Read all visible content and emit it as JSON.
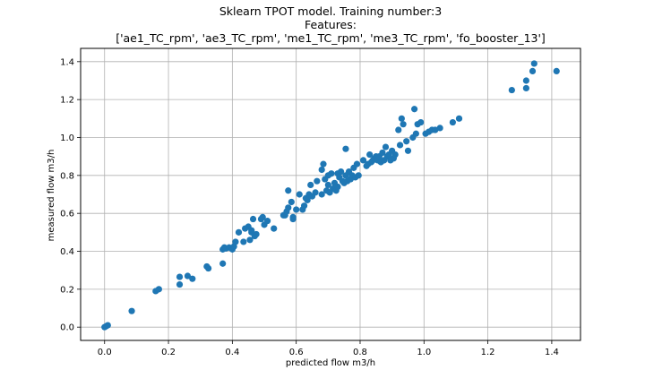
{
  "chart_data": {
    "type": "scatter",
    "title": "Sklearn TPOT model. Training number:3",
    "subtitle_lines": [
      "Features:",
      "['ae1_TC_rpm', 'ae3_TC_rpm', 'me1_TC_rpm', 'me3_TC_rpm', 'fo_booster_13']"
    ],
    "xlabel": "predicted flow m3/h",
    "ylabel": "measured flow m3/h",
    "xlim": [
      -0.075,
      1.49
    ],
    "ylim": [
      -0.07,
      1.47
    ],
    "xticks": [
      0.0,
      0.2,
      0.4,
      0.6,
      0.8,
      1.0,
      1.2,
      1.4
    ],
    "xtick_labels": [
      "0.0",
      "0.2",
      "0.4",
      "0.6",
      "0.8",
      "1.0",
      "1.2",
      "1.4"
    ],
    "yticks": [
      0.0,
      0.2,
      0.4,
      0.6,
      0.8,
      1.0,
      1.2,
      1.4
    ],
    "ytick_labels": [
      "0.0",
      "0.2",
      "0.4",
      "0.6",
      "0.8",
      "1.0",
      "1.2",
      "1.4"
    ],
    "grid": true,
    "marker_color": "#1f77b4",
    "points": [
      [
        0.0,
        0.0
      ],
      [
        0.005,
        0.005
      ],
      [
        0.01,
        0.01
      ],
      [
        0.085,
        0.085
      ],
      [
        0.16,
        0.19
      ],
      [
        0.17,
        0.2
      ],
      [
        0.235,
        0.225
      ],
      [
        0.235,
        0.265
      ],
      [
        0.26,
        0.27
      ],
      [
        0.275,
        0.255
      ],
      [
        0.32,
        0.32
      ],
      [
        0.325,
        0.31
      ],
      [
        0.37,
        0.335
      ],
      [
        0.37,
        0.41
      ],
      [
        0.375,
        0.42
      ],
      [
        0.38,
        0.415
      ],
      [
        0.39,
        0.42
      ],
      [
        0.4,
        0.41
      ],
      [
        0.405,
        0.425
      ],
      [
        0.41,
        0.45
      ],
      [
        0.42,
        0.5
      ],
      [
        0.435,
        0.45
      ],
      [
        0.44,
        0.52
      ],
      [
        0.45,
        0.53
      ],
      [
        0.455,
        0.46
      ],
      [
        0.46,
        0.5
      ],
      [
        0.46,
        0.51
      ],
      [
        0.465,
        0.57
      ],
      [
        0.47,
        0.48
      ],
      [
        0.475,
        0.49
      ],
      [
        0.49,
        0.57
      ],
      [
        0.495,
        0.58
      ],
      [
        0.5,
        0.54
      ],
      [
        0.51,
        0.56
      ],
      [
        0.53,
        0.52
      ],
      [
        0.56,
        0.59
      ],
      [
        0.565,
        0.59
      ],
      [
        0.57,
        0.61
      ],
      [
        0.575,
        0.63
      ],
      [
        0.575,
        0.72
      ],
      [
        0.585,
        0.66
      ],
      [
        0.59,
        0.58
      ],
      [
        0.59,
        0.57
      ],
      [
        0.6,
        0.62
      ],
      [
        0.61,
        0.7
      ],
      [
        0.62,
        0.62
      ],
      [
        0.625,
        0.64
      ],
      [
        0.63,
        0.68
      ],
      [
        0.635,
        0.67
      ],
      [
        0.64,
        0.7
      ],
      [
        0.645,
        0.75
      ],
      [
        0.65,
        0.69
      ],
      [
        0.66,
        0.71
      ],
      [
        0.665,
        0.77
      ],
      [
        0.68,
        0.7
      ],
      [
        0.68,
        0.83
      ],
      [
        0.685,
        0.86
      ],
      [
        0.69,
        0.78
      ],
      [
        0.695,
        0.72
      ],
      [
        0.7,
        0.75
      ],
      [
        0.7,
        0.8
      ],
      [
        0.705,
        0.71
      ],
      [
        0.71,
        0.81
      ],
      [
        0.715,
        0.73
      ],
      [
        0.72,
        0.76
      ],
      [
        0.725,
        0.72
      ],
      [
        0.73,
        0.74
      ],
      [
        0.73,
        0.81
      ],
      [
        0.735,
        0.79
      ],
      [
        0.74,
        0.82
      ],
      [
        0.745,
        0.77
      ],
      [
        0.75,
        0.76
      ],
      [
        0.755,
        0.8
      ],
      [
        0.755,
        0.94
      ],
      [
        0.76,
        0.77
      ],
      [
        0.765,
        0.82
      ],
      [
        0.77,
        0.78
      ],
      [
        0.775,
        0.8
      ],
      [
        0.78,
        0.84
      ],
      [
        0.785,
        0.79
      ],
      [
        0.79,
        0.86
      ],
      [
        0.795,
        0.8
      ],
      [
        0.81,
        0.88
      ],
      [
        0.82,
        0.85
      ],
      [
        0.825,
        0.86
      ],
      [
        0.83,
        0.91
      ],
      [
        0.835,
        0.87
      ],
      [
        0.84,
        0.88
      ],
      [
        0.845,
        0.89
      ],
      [
        0.85,
        0.9
      ],
      [
        0.855,
        0.88
      ],
      [
        0.86,
        0.9
      ],
      [
        0.865,
        0.87
      ],
      [
        0.87,
        0.92
      ],
      [
        0.875,
        0.88
      ],
      [
        0.88,
        0.95
      ],
      [
        0.885,
        0.9
      ],
      [
        0.89,
        0.91
      ],
      [
        0.895,
        0.88
      ],
      [
        0.9,
        0.93
      ],
      [
        0.905,
        0.89
      ],
      [
        0.91,
        0.91
      ],
      [
        0.92,
        1.04
      ],
      [
        0.925,
        0.96
      ],
      [
        0.93,
        1.1
      ],
      [
        0.935,
        1.07
      ],
      [
        0.945,
        0.98
      ],
      [
        0.95,
        0.93
      ],
      [
        0.965,
        1.0
      ],
      [
        0.97,
        1.15
      ],
      [
        0.975,
        1.02
      ],
      [
        0.98,
        1.07
      ],
      [
        0.99,
        1.08
      ],
      [
        1.005,
        1.02
      ],
      [
        1.015,
        1.03
      ],
      [
        1.025,
        1.04
      ],
      [
        1.035,
        1.04
      ],
      [
        1.05,
        1.05
      ],
      [
        1.09,
        1.08
      ],
      [
        1.11,
        1.1
      ],
      [
        1.275,
        1.25
      ],
      [
        1.32,
        1.26
      ],
      [
        1.32,
        1.3
      ],
      [
        1.34,
        1.35
      ],
      [
        1.345,
        1.39
      ],
      [
        1.415,
        1.35
      ]
    ]
  }
}
